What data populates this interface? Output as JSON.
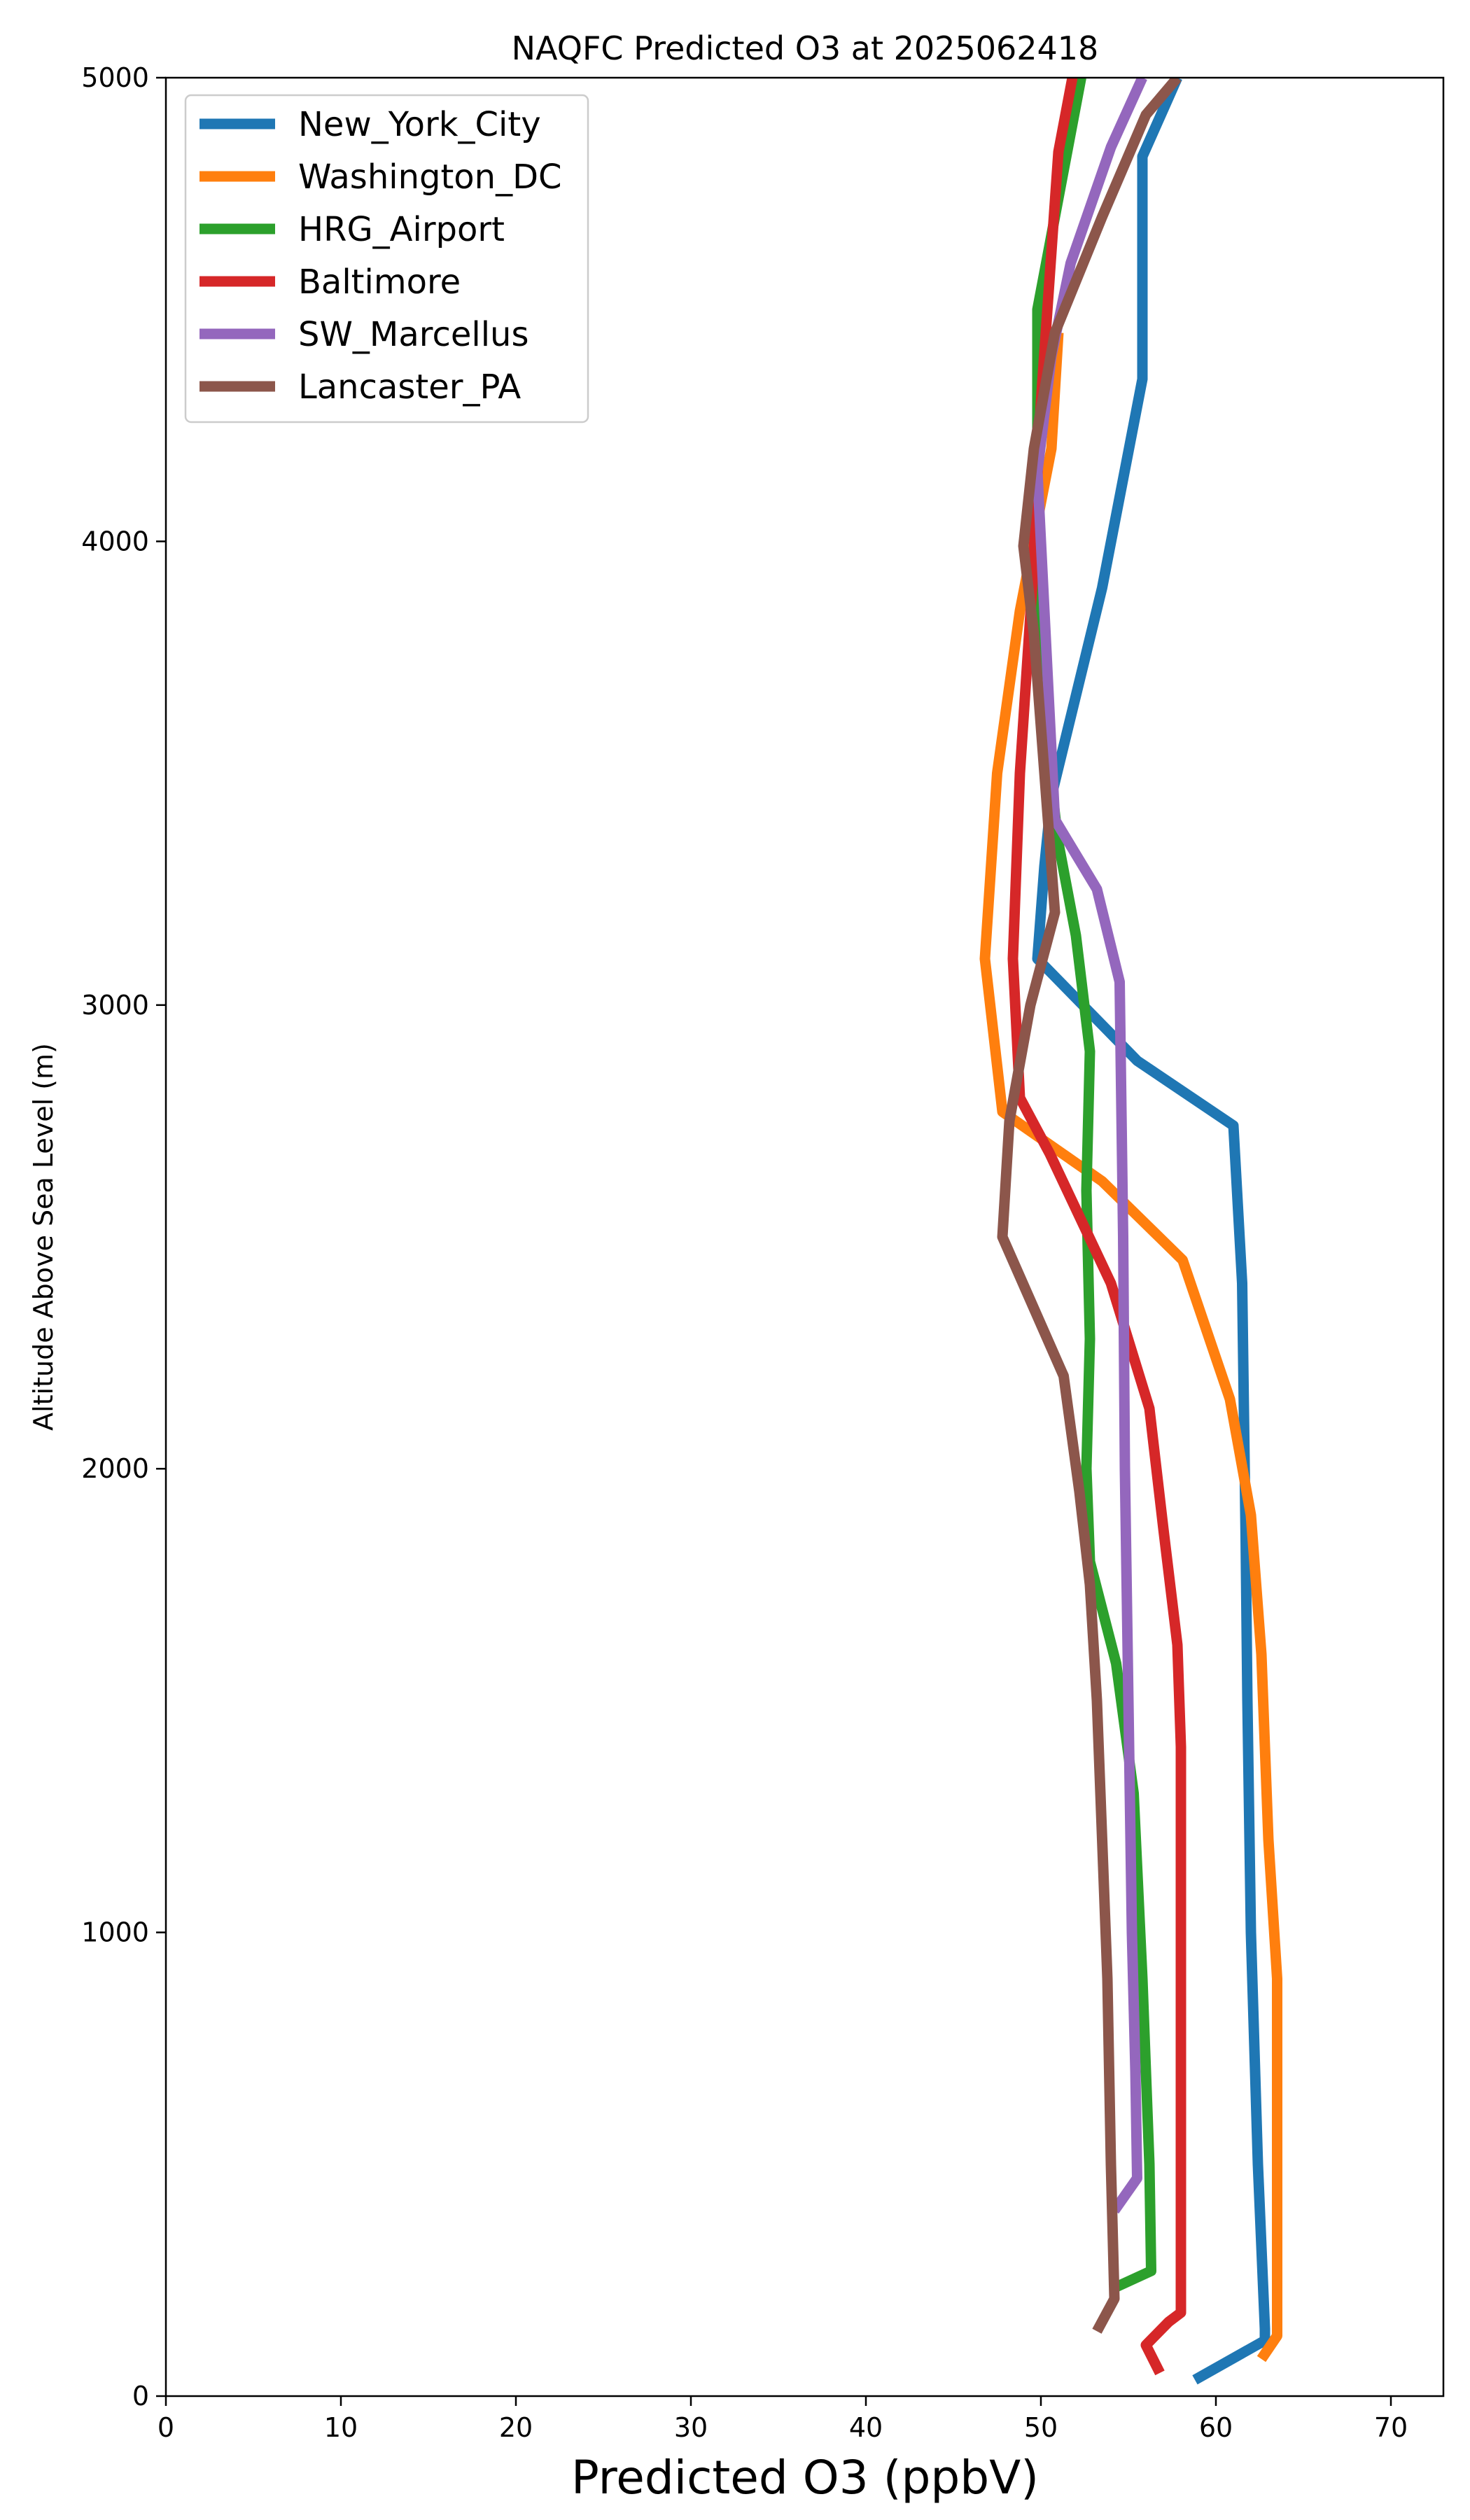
{
  "chart_data": {
    "type": "line",
    "title": "NAQFC Predicted O3 at 2025062418",
    "xlabel": "Predicted O3 (ppbV)",
    "ylabel": "Altitude Above Sea Level (m)",
    "xlim": [
      0,
      73
    ],
    "ylim": [
      0,
      5000
    ],
    "xticks": [
      0,
      10,
      20,
      30,
      40,
      50,
      60,
      70
    ],
    "yticks": [
      0,
      1000,
      2000,
      3000,
      4000,
      5000
    ],
    "grid": false,
    "legend_position": "upper-left",
    "series": [
      {
        "name": "New_York_City",
        "color": "#1f77b4",
        "points": [
          [
            58.8,
            35
          ],
          [
            62.8,
            120
          ],
          [
            62.8,
            145
          ],
          [
            62.4,
            500
          ],
          [
            62.0,
            1000
          ],
          [
            61.8,
            1500
          ],
          [
            61.7,
            1850
          ],
          [
            61.5,
            2400
          ],
          [
            61.0,
            2740
          ],
          [
            55.5,
            2880
          ],
          [
            49.8,
            3100
          ],
          [
            50.2,
            3300
          ],
          [
            50.6,
            3450
          ],
          [
            53.5,
            3900
          ],
          [
            55.8,
            4350
          ],
          [
            55.8,
            4830
          ],
          [
            57.8,
            5000
          ]
        ]
      },
      {
        "name": "Washington_DC",
        "color": "#ff7f0e",
        "points": [
          [
            62.6,
            80
          ],
          [
            63.5,
            130
          ],
          [
            63.5,
            900
          ],
          [
            63.0,
            1200
          ],
          [
            62.6,
            1600
          ],
          [
            62.0,
            1900
          ],
          [
            60.8,
            2150
          ],
          [
            58.1,
            2450
          ],
          [
            53.5,
            2620
          ],
          [
            47.8,
            2770
          ],
          [
            46.8,
            3100
          ],
          [
            47.5,
            3500
          ],
          [
            48.8,
            3850
          ],
          [
            50.6,
            4200
          ],
          [
            51.0,
            4450
          ]
        ]
      },
      {
        "name": "HRG_Airport",
        "color": "#2ca02c",
        "points": [
          [
            54.0,
            230
          ],
          [
            56.3,
            270
          ],
          [
            56.2,
            500
          ],
          [
            55.8,
            900
          ],
          [
            55.3,
            1300
          ],
          [
            54.3,
            1580
          ],
          [
            52.8,
            1800
          ],
          [
            52.6,
            2000
          ],
          [
            52.8,
            2280
          ],
          [
            52.6,
            2600
          ],
          [
            52.8,
            2900
          ],
          [
            52.0,
            3150
          ],
          [
            51.0,
            3350
          ],
          [
            50.2,
            3600
          ],
          [
            49.8,
            4000
          ],
          [
            49.8,
            4500
          ],
          [
            50.8,
            4700
          ],
          [
            52.3,
            5000
          ]
        ]
      },
      {
        "name": "Baltimore",
        "color": "#d62728",
        "points": [
          [
            56.8,
            50
          ],
          [
            56.0,
            110
          ],
          [
            57.3,
            160
          ],
          [
            58.0,
            180
          ],
          [
            58.0,
            600
          ],
          [
            58.0,
            1000
          ],
          [
            58.0,
            1400
          ],
          [
            57.8,
            1620
          ],
          [
            57.0,
            1870
          ],
          [
            56.2,
            2130
          ],
          [
            54.0,
            2400
          ],
          [
            50.5,
            2680
          ],
          [
            48.8,
            2800
          ],
          [
            48.4,
            3100
          ],
          [
            48.8,
            3500
          ],
          [
            49.5,
            3900
          ],
          [
            50.0,
            4300
          ],
          [
            51.0,
            4840
          ],
          [
            51.8,
            5000
          ]
        ]
      },
      {
        "name": "SW_Marcellus",
        "color": "#9467bd",
        "points": [
          [
            54.2,
            400
          ],
          [
            55.5,
            470
          ],
          [
            55.4,
            700
          ],
          [
            55.2,
            1000
          ],
          [
            55.0,
            1500
          ],
          [
            54.8,
            2000
          ],
          [
            54.7,
            2500
          ],
          [
            54.5,
            3050
          ],
          [
            53.2,
            3250
          ],
          [
            50.8,
            3400
          ],
          [
            50.4,
            3700
          ],
          [
            50.0,
            4000
          ],
          [
            49.8,
            4150
          ],
          [
            50.6,
            4400
          ],
          [
            51.7,
            4600
          ],
          [
            54.0,
            4850
          ],
          [
            55.8,
            5000
          ]
        ]
      },
      {
        "name": "Lancaster_PA",
        "color": "#8c564b",
        "points": [
          [
            53.2,
            140
          ],
          [
            54.2,
            210
          ],
          [
            54.0,
            500
          ],
          [
            53.8,
            900
          ],
          [
            53.5,
            1200
          ],
          [
            53.2,
            1500
          ],
          [
            52.8,
            1750
          ],
          [
            52.2,
            1950
          ],
          [
            51.3,
            2200
          ],
          [
            47.8,
            2500
          ],
          [
            48.2,
            2750
          ],
          [
            49.4,
            3000
          ],
          [
            50.8,
            3200
          ],
          [
            50.2,
            3500
          ],
          [
            49.6,
            3800
          ],
          [
            49.0,
            3990
          ],
          [
            49.6,
            4200
          ],
          [
            50.8,
            4450
          ],
          [
            53.5,
            4700
          ],
          [
            56.0,
            4920
          ],
          [
            57.8,
            5000
          ]
        ]
      }
    ]
  }
}
